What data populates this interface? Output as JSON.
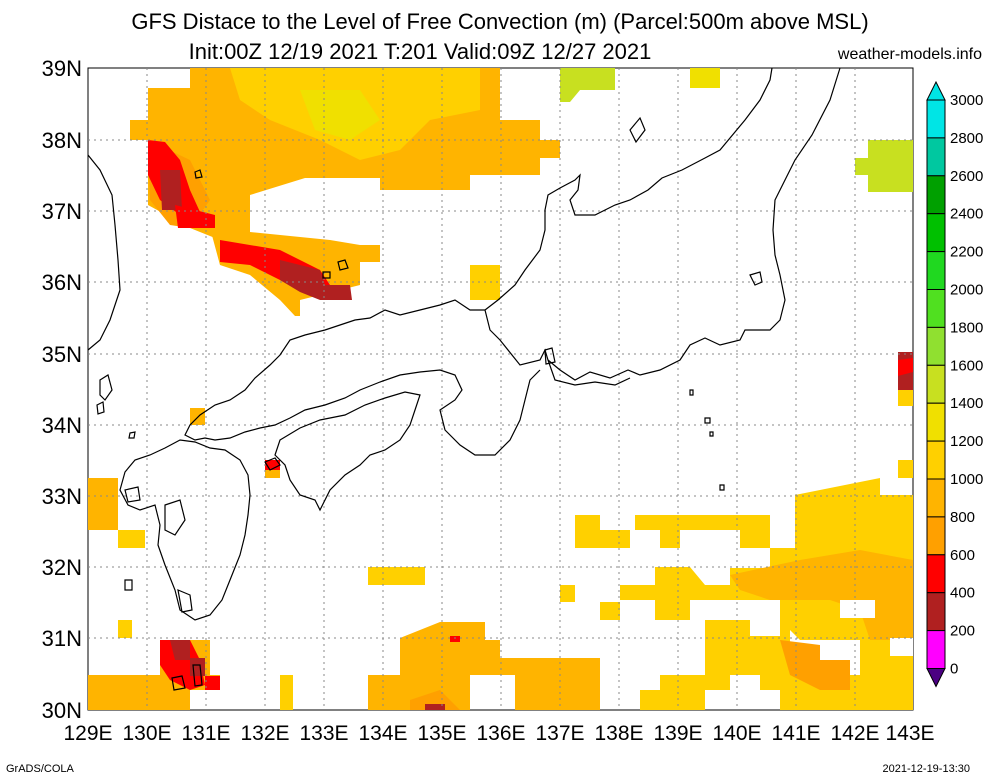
{
  "title_line1": "GFS Distace to the Level of Free Convection (m) (Parcel:500m above MSL)",
  "title_line2": "Init:00Z 12/19 2021 T:201 Valid:09Z 12/27 2021",
  "site": "weather-models.info",
  "credit_left": "GrADS/COLA",
  "credit_right": "2021-12-19-13:30",
  "lat_labels": [
    "39N",
    "38N",
    "37N",
    "36N",
    "35N",
    "34N",
    "33N",
    "32N",
    "31N",
    "30N"
  ],
  "lon_labels": [
    "129E",
    "130E",
    "131E",
    "132E",
    "133E",
    "134E",
    "135E",
    "136E",
    "137E",
    "138E",
    "139E",
    "140E",
    "141E",
    "142E",
    "143E"
  ],
  "colorbar": {
    "labels": [
      "3000",
      "2800",
      "2600",
      "2400",
      "2200",
      "2000",
      "1800",
      "1600",
      "1400",
      "1200",
      "1000",
      "800",
      "600",
      "400",
      "200",
      "0"
    ],
    "colors": [
      "#00e5e5",
      "#00c8a0",
      "#00a000",
      "#00c000",
      "#20d820",
      "#50e020",
      "#90e030",
      "#c8e020",
      "#f0e000",
      "#ffd000",
      "#ffb400",
      "#ffa000",
      "#ff0000",
      "#b02020",
      "#ff00ff",
      "#4b0082"
    ]
  }
}
